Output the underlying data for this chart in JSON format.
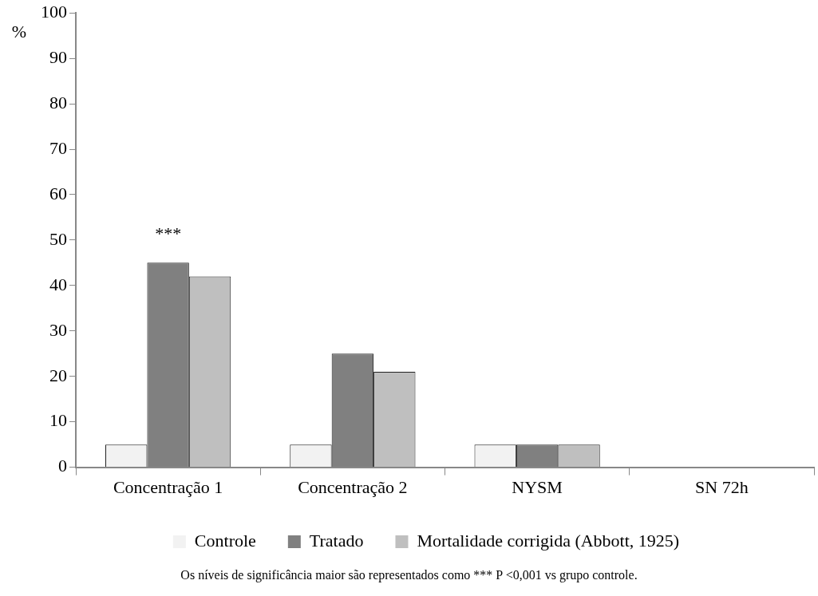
{
  "chart_data": {
    "type": "bar",
    "ylabel": "%",
    "categories": [
      "Concentração 1",
      "Concentração 2",
      "NYSM",
      "SN 72h"
    ],
    "series": [
      {
        "name": "Controle",
        "color": "#f2f2f2",
        "values": [
          5,
          5,
          5,
          0
        ]
      },
      {
        "name": "Tratado",
        "color": "#808080",
        "values": [
          45,
          25,
          5,
          0
        ]
      },
      {
        "name": "Mortalidade corrigida (Abbott, 1925)",
        "color": "#bfbfbf",
        "values": [
          42,
          21,
          5,
          0
        ]
      }
    ],
    "ylim": [
      0,
      100
    ],
    "yticks": [
      0,
      10,
      20,
      30,
      40,
      50,
      60,
      70,
      80,
      90,
      100
    ],
    "grid": false,
    "legend": "bottom",
    "annotations": [
      {
        "text": "***",
        "x": "Concentração 1",
        "y": 45
      },
      "Os níveis de significância maior são representados como *** P <0,001 vs grupo controle."
    ]
  }
}
